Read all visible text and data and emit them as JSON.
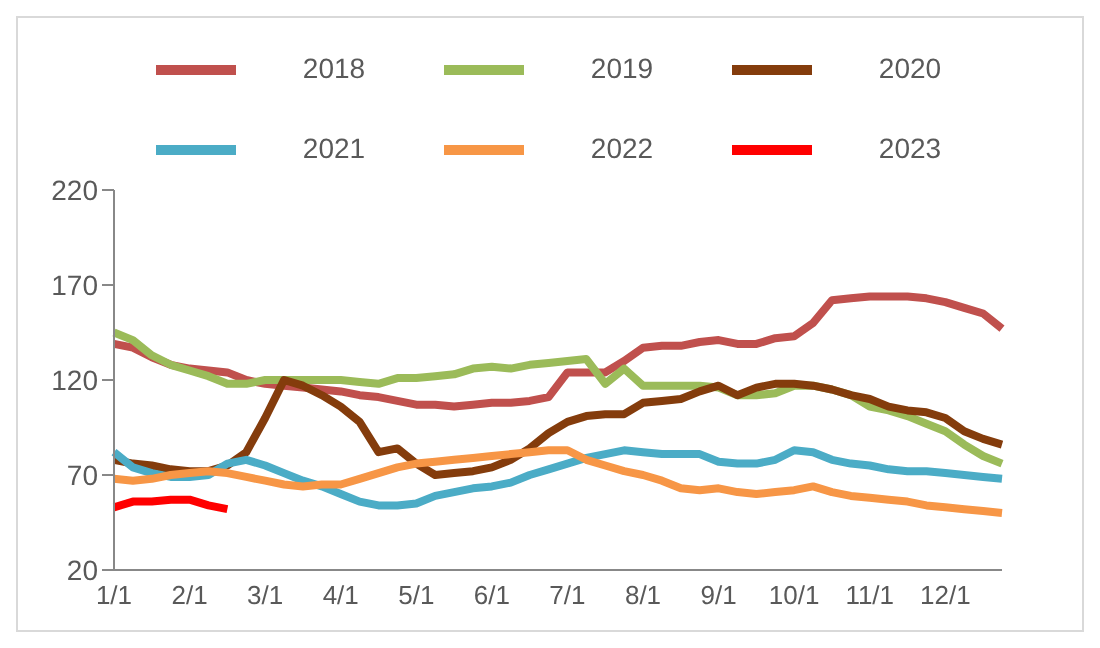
{
  "chart_data": {
    "type": "line",
    "categories": [
      "1/1",
      null,
      null,
      null,
      "2/1",
      null,
      null,
      null,
      "3/1",
      null,
      null,
      null,
      "4/1",
      null,
      null,
      null,
      "5/1",
      null,
      null,
      null,
      "6/1",
      null,
      null,
      null,
      "7/1",
      null,
      null,
      null,
      "8/1",
      null,
      null,
      null,
      "9/1",
      null,
      null,
      null,
      "10/1",
      null,
      null,
      null,
      "11/1",
      null,
      null,
      null,
      "12/1",
      null,
      null,
      null
    ],
    "series": [
      {
        "name": "2018",
        "color": "#c0504d",
        "values": [
          139,
          137,
          132,
          128,
          126,
          125,
          124,
          120,
          118,
          117,
          116,
          115,
          114,
          112,
          111,
          109,
          107,
          107,
          106,
          107,
          108,
          108,
          109,
          111,
          124,
          124,
          124,
          130,
          137,
          138,
          138,
          140,
          141,
          139,
          139,
          142,
          143,
          150,
          162,
          163,
          164,
          164,
          164,
          163,
          161,
          158,
          155,
          147
        ]
      },
      {
        "name": "2019",
        "color": "#9bbb59",
        "values": [
          145,
          141,
          133,
          128,
          125,
          122,
          118,
          118,
          120,
          120,
          120,
          120,
          120,
          119,
          118,
          121,
          121,
          122,
          123,
          126,
          127,
          126,
          128,
          129,
          130,
          131,
          118,
          126,
          117,
          117,
          117,
          117,
          116,
          112,
          112,
          113,
          117,
          117,
          115,
          112,
          106,
          104,
          101,
          97,
          93,
          86,
          80,
          76
        ]
      },
      {
        "name": "2020",
        "color": "#843c0c",
        "values": [
          78,
          76,
          75,
          73,
          72,
          72,
          75,
          82,
          100,
          120,
          117,
          112,
          106,
          98,
          82,
          84,
          76,
          70,
          71,
          72,
          74,
          78,
          84,
          92,
          98,
          101,
          102,
          102,
          108,
          109,
          110,
          114,
          117,
          112,
          116,
          118,
          118,
          117,
          115,
          112,
          110,
          106,
          104,
          103,
          100,
          93,
          89,
          86
        ]
      },
      {
        "name": "2021",
        "color": "#4bacc6",
        "values": [
          82,
          74,
          71,
          69,
          69,
          70,
          76,
          78,
          75,
          71,
          67,
          64,
          60,
          56,
          54,
          54,
          55,
          59,
          61,
          63,
          64,
          66,
          70,
          73,
          76,
          79,
          81,
          83,
          82,
          81,
          81,
          81,
          77,
          76,
          76,
          78,
          83,
          82,
          78,
          76,
          75,
          73,
          72,
          72,
          71,
          70,
          69,
          68
        ]
      },
      {
        "name": "2022",
        "color": "#f79646",
        "values": [
          68,
          67,
          68,
          70,
          71,
          72,
          71,
          69,
          67,
          65,
          64,
          65,
          65,
          68,
          71,
          74,
          76,
          77,
          78,
          79,
          80,
          81,
          82,
          83,
          83,
          78,
          75,
          72,
          70,
          67,
          63,
          62,
          63,
          61,
          60,
          61,
          62,
          64,
          61,
          59,
          58,
          57,
          56,
          54,
          53,
          52,
          51,
          50
        ]
      },
      {
        "name": "2023",
        "color": "#ff0000",
        "values": [
          53,
          56,
          56,
          57,
          57,
          54,
          52,
          null,
          null,
          null,
          null,
          null,
          null,
          null,
          null,
          null,
          null,
          null,
          null,
          null,
          null,
          null,
          null,
          null,
          null,
          null,
          null,
          null,
          null,
          null,
          null,
          null,
          null,
          null,
          null,
          null,
          null,
          null,
          null,
          null,
          null,
          null,
          null,
          null,
          null,
          null,
          null,
          null
        ]
      }
    ],
    "ylim": [
      20,
      220
    ],
    "yticks": [
      20,
      70,
      120,
      170,
      220
    ],
    "grid": false,
    "legend": "top",
    "marker": "none",
    "line_style": "solid"
  }
}
